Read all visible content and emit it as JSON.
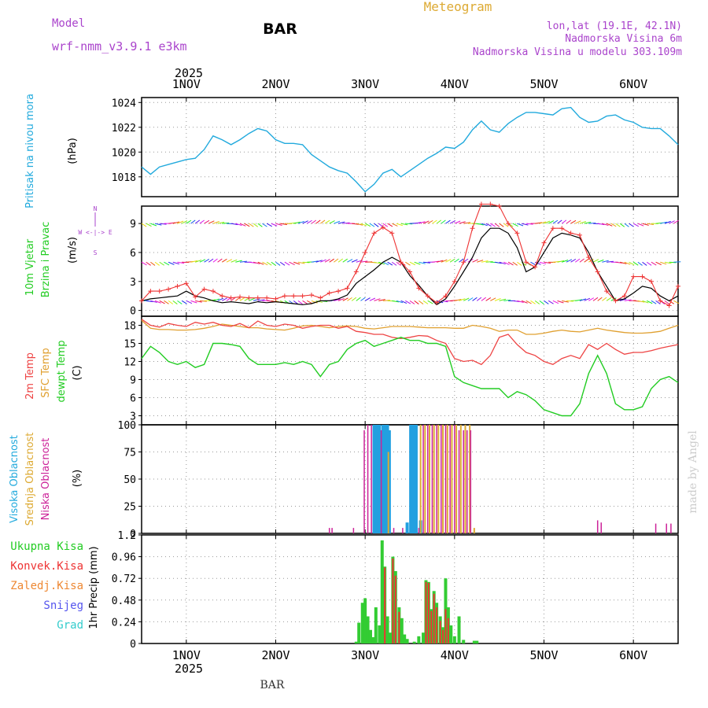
{
  "header": {
    "model_label": "Model",
    "model_name": "wrf-nmm_v3.9.1 e3km",
    "station": "BAR",
    "product": "Meteogram",
    "coords": "lon,lat (19.1E, 42.1N)",
    "elevation": "Nadmorska Visina 6m",
    "model_elevation": "Nadmorska Visina u modelu 303.109m"
  },
  "footer": {
    "station": "BAR",
    "credit": "made by Angel"
  },
  "time_axis": {
    "year": "2025",
    "days": [
      "1NOV",
      "2NOV",
      "3NOV",
      "4NOV",
      "5NOV",
      "6NOV"
    ],
    "start_day_offset": -0.5,
    "end_day_offset": 5.5
  },
  "colors": {
    "pressure": "#22aadd",
    "wind_speed": "#000000",
    "wind_gust": "#ee3333",
    "t2m": "#ee4444",
    "tsfc": "#e0a030",
    "dewpt": "#22cc22",
    "cloud_high": "#22a0e0",
    "cloud_mid": "#ddaa33",
    "cloud_low": "#cc2299",
    "precip_total": "#33cc33",
    "precip_conv": "#ee3333",
    "precip_frz": "#ee8833",
    "snow": "#5555ee",
    "hail": "#33cccc",
    "grid": "#999999"
  },
  "panels": {
    "pressure": {
      "title": "Pritisak na nivou mora",
      "unit": "(hPa)"
    },
    "wind": {
      "title1": "10m Vjetar",
      "title2": "Brzina i Pravac",
      "unit": "(m/s)",
      "compass": "W <-|-> E",
      "compass_n": "N",
      "compass_s": "S"
    },
    "temp": {
      "title1": "2m Temp",
      "title2": "SFC Temp",
      "title3": "dewpt Temp",
      "unit": "(C)"
    },
    "cloud": {
      "title1": "Visoka Oblacnost",
      "title2": "Srednja Oblacnost",
      "title3": "Niska Oblacnost",
      "unit": "(%)"
    },
    "precip": {
      "unit": "1hr Precip (mm)",
      "legend": [
        "Ukupna Kisa",
        "Konvek.Kisa",
        "Zaledj.Kisa",
        "Snijeg",
        "Grad"
      ]
    }
  },
  "chart_data": [
    {
      "type": "line",
      "title": "Pritisak na nivou mora",
      "ylabel": "(hPa)",
      "ylim": [
        1016.4,
        1024.4
      ],
      "yticks": [
        1018,
        1020,
        1022,
        1024
      ],
      "x": [
        -0.5,
        -0.4,
        -0.3,
        -0.2,
        -0.1,
        0,
        0.1,
        0.2,
        0.3,
        0.4,
        0.5,
        0.6,
        0.7,
        0.8,
        0.9,
        1.0,
        1.1,
        1.2,
        1.3,
        1.4,
        1.5,
        1.6,
        1.7,
        1.8,
        1.9,
        2.0,
        2.1,
        2.2,
        2.3,
        2.4,
        2.5,
        2.6,
        2.7,
        2.8,
        2.9,
        3.0,
        3.1,
        3.2,
        3.3,
        3.4,
        3.5,
        3.6,
        3.7,
        3.8,
        3.9,
        4.0,
        4.1,
        4.2,
        4.3,
        4.4,
        4.5,
        4.6,
        4.7,
        4.8,
        4.9,
        5.0,
        5.1,
        5.2,
        5.3,
        5.4,
        5.5
      ],
      "series": [
        {
          "name": "Pritisak",
          "values": [
            1018.8,
            1018.2,
            1018.8,
            1019.0,
            1019.2,
            1019.4,
            1019.5,
            1020.2,
            1021.3,
            1021.0,
            1020.6,
            1021.0,
            1021.5,
            1021.9,
            1021.7,
            1021.0,
            1020.7,
            1020.7,
            1020.6,
            1019.8,
            1019.3,
            1018.8,
            1018.5,
            1018.3,
            1017.6,
            1016.8,
            1017.4,
            1018.3,
            1018.6,
            1018.0,
            1018.5,
            1019.0,
            1019.5,
            1019.9,
            1020.4,
            1020.3,
            1020.8,
            1021.8,
            1022.5,
            1021.8,
            1021.6,
            1022.3,
            1022.8,
            1023.2,
            1023.2,
            1023.1,
            1023.0,
            1023.5,
            1023.6,
            1022.8,
            1022.4,
            1022.5,
            1022.9,
            1023.0,
            1022.6,
            1022.4,
            1022.0,
            1021.9,
            1021.9,
            1021.3,
            1020.6
          ]
        }
      ]
    },
    {
      "type": "line",
      "title": "10m Vjetar Brzina i Pravac",
      "ylabel": "(m/s)",
      "ylim": [
        -0.6,
        10.8
      ],
      "yticks": [
        0,
        3,
        6,
        9
      ],
      "x": [
        -0.5,
        -0.4,
        -0.3,
        -0.2,
        -0.1,
        0,
        0.1,
        0.2,
        0.3,
        0.4,
        0.5,
        0.6,
        0.7,
        0.8,
        0.9,
        1.0,
        1.1,
        1.2,
        1.3,
        1.4,
        1.5,
        1.6,
        1.7,
        1.8,
        1.9,
        2.0,
        2.1,
        2.2,
        2.3,
        2.4,
        2.5,
        2.6,
        2.7,
        2.8,
        2.9,
        3.0,
        3.1,
        3.2,
        3.3,
        3.4,
        3.5,
        3.6,
        3.7,
        3.8,
        3.9,
        4.0,
        4.1,
        4.2,
        4.3,
        4.4,
        4.5,
        4.6,
        4.7,
        4.8,
        4.9,
        5.0,
        5.1,
        5.2,
        5.3,
        5.4,
        5.5
      ],
      "series": [
        {
          "name": "Brzina",
          "values": [
            1.0,
            1.2,
            1.3,
            1.4,
            1.5,
            2.0,
            1.5,
            1.3,
            1.0,
            0.8,
            0.9,
            0.8,
            0.7,
            0.9,
            0.8,
            0.9,
            0.8,
            0.7,
            0.6,
            0.7,
            1.0,
            1.0,
            1.2,
            1.6,
            2.8,
            3.5,
            4.2,
            5.0,
            5.5,
            5.0,
            3.6,
            2.6,
            1.5,
            0.6,
            1.2,
            2.5,
            4.0,
            5.5,
            7.5,
            8.5,
            8.5,
            8.0,
            6.5,
            4.0,
            4.5,
            6.0,
            7.5,
            8.0,
            7.8,
            7.5,
            6.0,
            4.0,
            2.5,
            1.0,
            1.2,
            1.8,
            2.5,
            2.3,
            1.5,
            1.0,
            1.5
          ]
        },
        {
          "name": "Udar",
          "values": [
            1.0,
            2.0,
            2.0,
            2.2,
            2.5,
            2.8,
            1.4,
            2.2,
            2.0,
            1.5,
            1.3,
            1.4,
            1.3,
            1.3,
            1.3,
            1.2,
            1.5,
            1.5,
            1.5,
            1.6,
            1.3,
            1.8,
            2.0,
            2.3,
            4.0,
            6.0,
            8.0,
            8.6,
            8.0,
            5.0,
            4.0,
            2.3,
            1.5,
            0.8,
            1.5,
            3.0,
            5.0,
            8.5,
            11.0,
            11.0,
            10.8,
            9.0,
            8.0,
            5.0,
            4.5,
            7.0,
            8.5,
            8.5,
            8.0,
            7.8,
            5.5,
            4.0,
            2.0,
            1.0,
            1.5,
            3.5,
            3.5,
            3.0,
            1.0,
            0.5,
            2.5
          ]
        }
      ]
    },
    {
      "type": "line",
      "title": "2m Temp / SFC Temp / dewpt Temp",
      "ylabel": "(C)",
      "ylim": [
        1.5,
        19.5
      ],
      "yticks": [
        3,
        6,
        9,
        12,
        15,
        18
      ],
      "x": [
        -0.5,
        -0.4,
        -0.3,
        -0.2,
        -0.1,
        0,
        0.1,
        0.2,
        0.3,
        0.4,
        0.5,
        0.6,
        0.7,
        0.8,
        0.9,
        1.0,
        1.1,
        1.2,
        1.3,
        1.4,
        1.5,
        1.6,
        1.7,
        1.8,
        1.9,
        2.0,
        2.1,
        2.2,
        2.3,
        2.4,
        2.5,
        2.6,
        2.7,
        2.8,
        2.9,
        3.0,
        3.1,
        3.2,
        3.3,
        3.4,
        3.5,
        3.6,
        3.7,
        3.8,
        3.9,
        4.0,
        4.1,
        4.2,
        4.3,
        4.4,
        4.5,
        4.6,
        4.7,
        4.8,
        4.9,
        5.0,
        5.1,
        5.2,
        5.3,
        5.4,
        5.5
      ],
      "series": [
        {
          "name": "2m Temp",
          "values": [
            19.0,
            18.0,
            17.7,
            18.3,
            18.0,
            17.8,
            18.5,
            18.2,
            18.5,
            18.0,
            17.8,
            18.3,
            17.6,
            18.7,
            18.0,
            17.8,
            18.2,
            18.0,
            17.5,
            17.8,
            18.0,
            18.0,
            17.5,
            17.8,
            17.0,
            16.8,
            16.5,
            16.5,
            16.0,
            15.8,
            16.0,
            16.3,
            16.2,
            15.5,
            15.0,
            12.5,
            12.0,
            12.2,
            11.5,
            13.0,
            16.0,
            16.5,
            14.8,
            13.5,
            13.0,
            12.0,
            11.5,
            12.5,
            13.0,
            12.5,
            14.8,
            14.0,
            15.0,
            14.0,
            13.2,
            13.5,
            13.5,
            13.8,
            14.2,
            14.5,
            14.8
          ]
        },
        {
          "name": "SFC Temp",
          "values": [
            18.8,
            17.5,
            17.3,
            17.3,
            17.2,
            17.2,
            17.3,
            17.5,
            17.8,
            18.2,
            18.0,
            17.8,
            17.6,
            17.6,
            17.4,
            17.3,
            17.2,
            17.5,
            17.9,
            18.0,
            17.8,
            17.6,
            17.8,
            17.9,
            17.8,
            17.5,
            17.4,
            17.6,
            17.8,
            17.8,
            17.8,
            17.7,
            17.6,
            17.6,
            17.6,
            17.5,
            17.5,
            18.0,
            17.8,
            17.5,
            17.0,
            17.2,
            17.2,
            16.5,
            16.5,
            16.7,
            17.0,
            17.2,
            17.0,
            16.9,
            17.2,
            17.5,
            17.2,
            17.0,
            16.8,
            16.7,
            16.7,
            16.8,
            17.0,
            17.5,
            18.0
          ]
        },
        {
          "name": "dewpt Temp",
          "values": [
            12.5,
            14.5,
            13.5,
            12.0,
            11.5,
            12.0,
            11.0,
            11.5,
            15.0,
            15.0,
            14.8,
            14.5,
            12.5,
            11.5,
            11.5,
            11.5,
            11.8,
            11.5,
            12.0,
            11.5,
            9.5,
            11.5,
            12.0,
            14.0,
            15.0,
            15.5,
            14.5,
            15.0,
            15.5,
            16.0,
            15.5,
            15.5,
            15.0,
            15.0,
            14.5,
            9.5,
            8.5,
            8.0,
            7.5,
            7.5,
            7.5,
            6.0,
            7.0,
            6.5,
            5.5,
            4.0,
            3.5,
            3.0,
            3.0,
            5.0,
            10.0,
            13.0,
            10.0,
            5.0,
            4.0,
            4.0,
            4.5,
            7.5,
            9.0,
            9.5,
            8.5
          ]
        }
      ]
    },
    {
      "type": "bar",
      "title": "Visoka / Srednja / Niska Oblacnost",
      "ylabel": "(%)",
      "ylim": [
        0,
        100
      ],
      "yticks": [
        0,
        25,
        50,
        75,
        100
      ],
      "series": [
        {
          "name": "Visoka Oblacnost",
          "x": [
            2.1,
            2.13,
            2.16,
            2.2,
            2.23,
            2.25,
            2.27,
            2.47,
            2.51,
            2.54,
            2.57,
            2.62
          ],
          "values": [
            100,
            100,
            100,
            100,
            100,
            100,
            95,
            10,
            100,
            100,
            100,
            12
          ]
        },
        {
          "name": "Srednja Oblacnost",
          "x": [
            2.26,
            2.62,
            2.67,
            2.72,
            2.77,
            2.82,
            2.87,
            2.92,
            2.97,
            3.02,
            3.07,
            3.12,
            3.17,
            3.22
          ],
          "values": [
            75,
            100,
            100,
            100,
            100,
            100,
            100,
            100,
            100,
            100,
            100,
            100,
            100,
            5
          ]
        },
        {
          "name": "Niska Oblacnost",
          "x": [
            1.6,
            1.63,
            1.87,
            1.99,
            2.03,
            2.07,
            2.18,
            2.32,
            2.42,
            2.6,
            2.65,
            2.7,
            2.75,
            2.8,
            2.85,
            2.9,
            2.95,
            3.0,
            3.05,
            3.1,
            3.14,
            3.18,
            4.6,
            4.64,
            5.25,
            5.37,
            5.42
          ],
          "values": [
            5,
            5,
            5,
            95,
            100,
            100,
            95,
            5,
            5,
            5,
            100,
            100,
            100,
            100,
            100,
            100,
            100,
            100,
            95,
            95,
            95,
            95,
            12,
            10,
            9,
            9,
            9
          ]
        }
      ]
    },
    {
      "type": "bar",
      "title": "1hr Precip",
      "ylabel": "1hr Precip (mm)",
      "ylim": [
        0,
        1.2
      ],
      "yticks": [
        0,
        0.24,
        0.48,
        0.72,
        0.96,
        1.2
      ],
      "series": [
        {
          "name": "Ukupna Kisa",
          "x": [
            1.9,
            1.93,
            1.97,
            2.0,
            2.03,
            2.06,
            2.09,
            2.12,
            2.16,
            2.19,
            2.22,
            2.25,
            2.28,
            2.31,
            2.34,
            2.38,
            2.41,
            2.44,
            2.47,
            2.55,
            2.6,
            2.65,
            2.68,
            2.71,
            2.74,
            2.77,
            2.8,
            2.84,
            2.87,
            2.9,
            2.93,
            2.96,
            3.0,
            3.05,
            3.1,
            3.22,
            3.25
          ],
          "values": [
            0.02,
            0.23,
            0.45,
            0.5,
            0.3,
            0.15,
            0.07,
            0.4,
            0.2,
            1.14,
            0.85,
            0.3,
            0.12,
            0.96,
            0.8,
            0.4,
            0.28,
            0.1,
            0.05,
            0.02,
            0.08,
            0.12,
            0.7,
            0.68,
            0.38,
            0.58,
            0.45,
            0.3,
            0.18,
            0.72,
            0.4,
            0.2,
            0.08,
            0.3,
            0.04,
            0.03,
            0.03
          ]
        },
        {
          "name": "Konvek.Kisa",
          "x": [
            2.22,
            2.31,
            2.34,
            2.38,
            2.68,
            2.71,
            2.74,
            2.77,
            2.8,
            2.84,
            2.87,
            2.9,
            2.93
          ],
          "values": [
            0.84,
            0.94,
            0.75,
            0.35,
            0.68,
            0.67,
            0.36,
            0.55,
            0.4,
            0.25,
            0.15,
            0.38,
            0.28
          ]
        }
      ]
    }
  ]
}
